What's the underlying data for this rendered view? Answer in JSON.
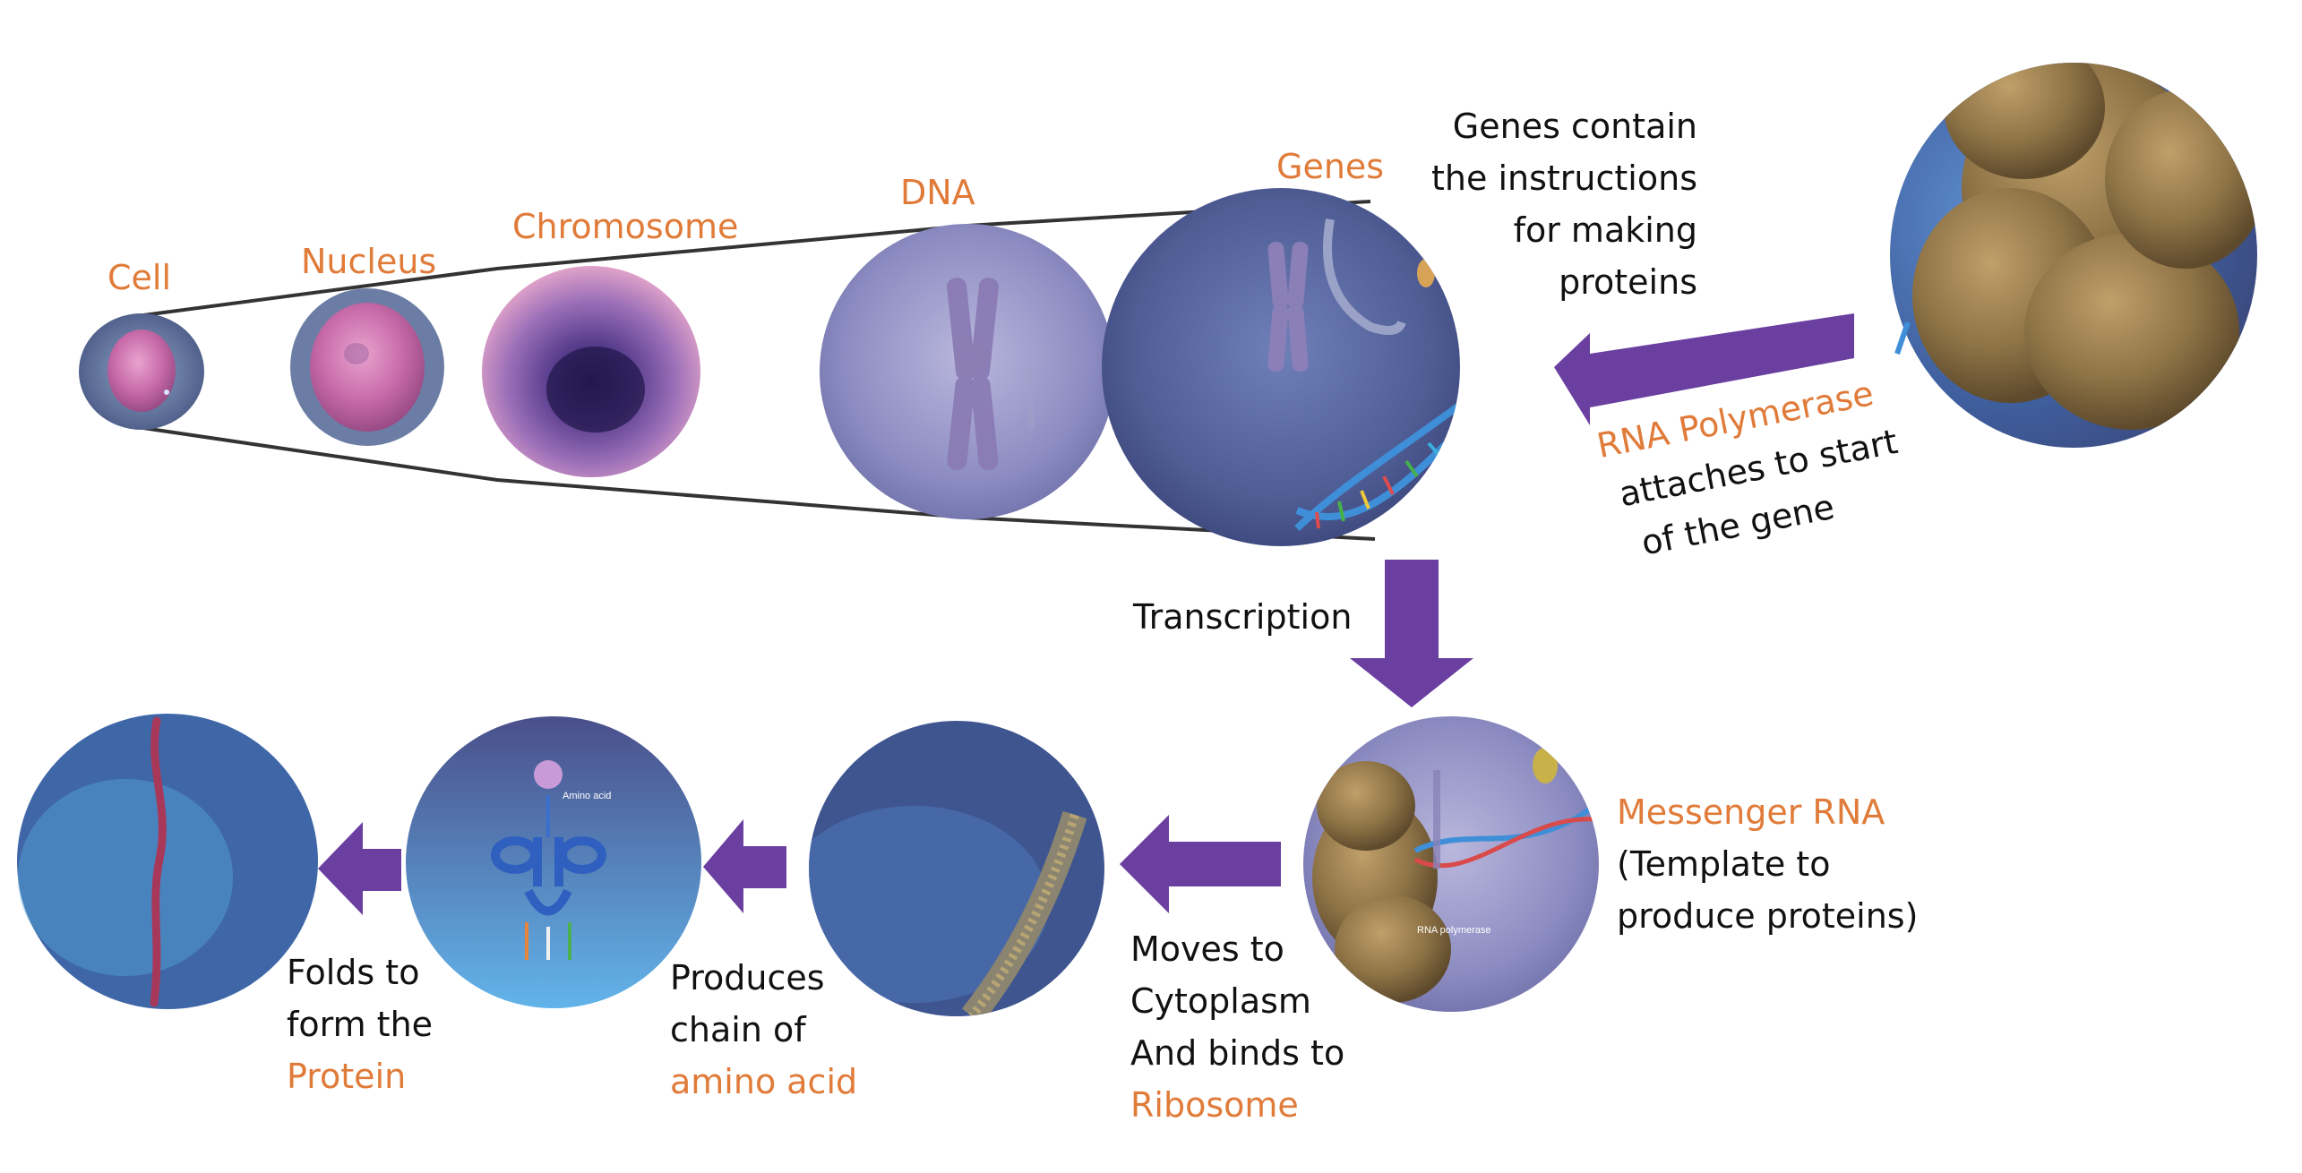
{
  "colors": {
    "accent_text": "#E07B39",
    "body_text": "#111111",
    "arrow": "#6B3FA0",
    "connector_line": "#333333"
  },
  "zoom_sequence": {
    "cell": "Cell",
    "nucleus": "Nucleus",
    "chromosome": "Chromosome",
    "dna": "DNA",
    "genes": "Genes"
  },
  "genes_note": [
    "Genes contain",
    "the instructions",
    "for making",
    "proteins"
  ],
  "polymerase": {
    "name": "RNA Polymerase",
    "line1": "attaches to start",
    "line2": "of the gene"
  },
  "transcription_label": "Transcription",
  "messenger": {
    "name": "Messenger RNA",
    "line1": "(Template to",
    "line2": "produce proteins)"
  },
  "cytoplasm": {
    "line1": "Moves to",
    "line2": "Cytoplasm",
    "line3": "And binds to",
    "highlight": "Ribosome"
  },
  "amino": {
    "line1": "Produces",
    "line2": "chain of",
    "highlight": "amino acid"
  },
  "fold": {
    "line1": "Folds to",
    "line2": "form the",
    "highlight": "Protein"
  },
  "image_text": {
    "rna_polymerase_tag": "RNA polymerase",
    "amino_acid_tag": "Amino acid"
  }
}
